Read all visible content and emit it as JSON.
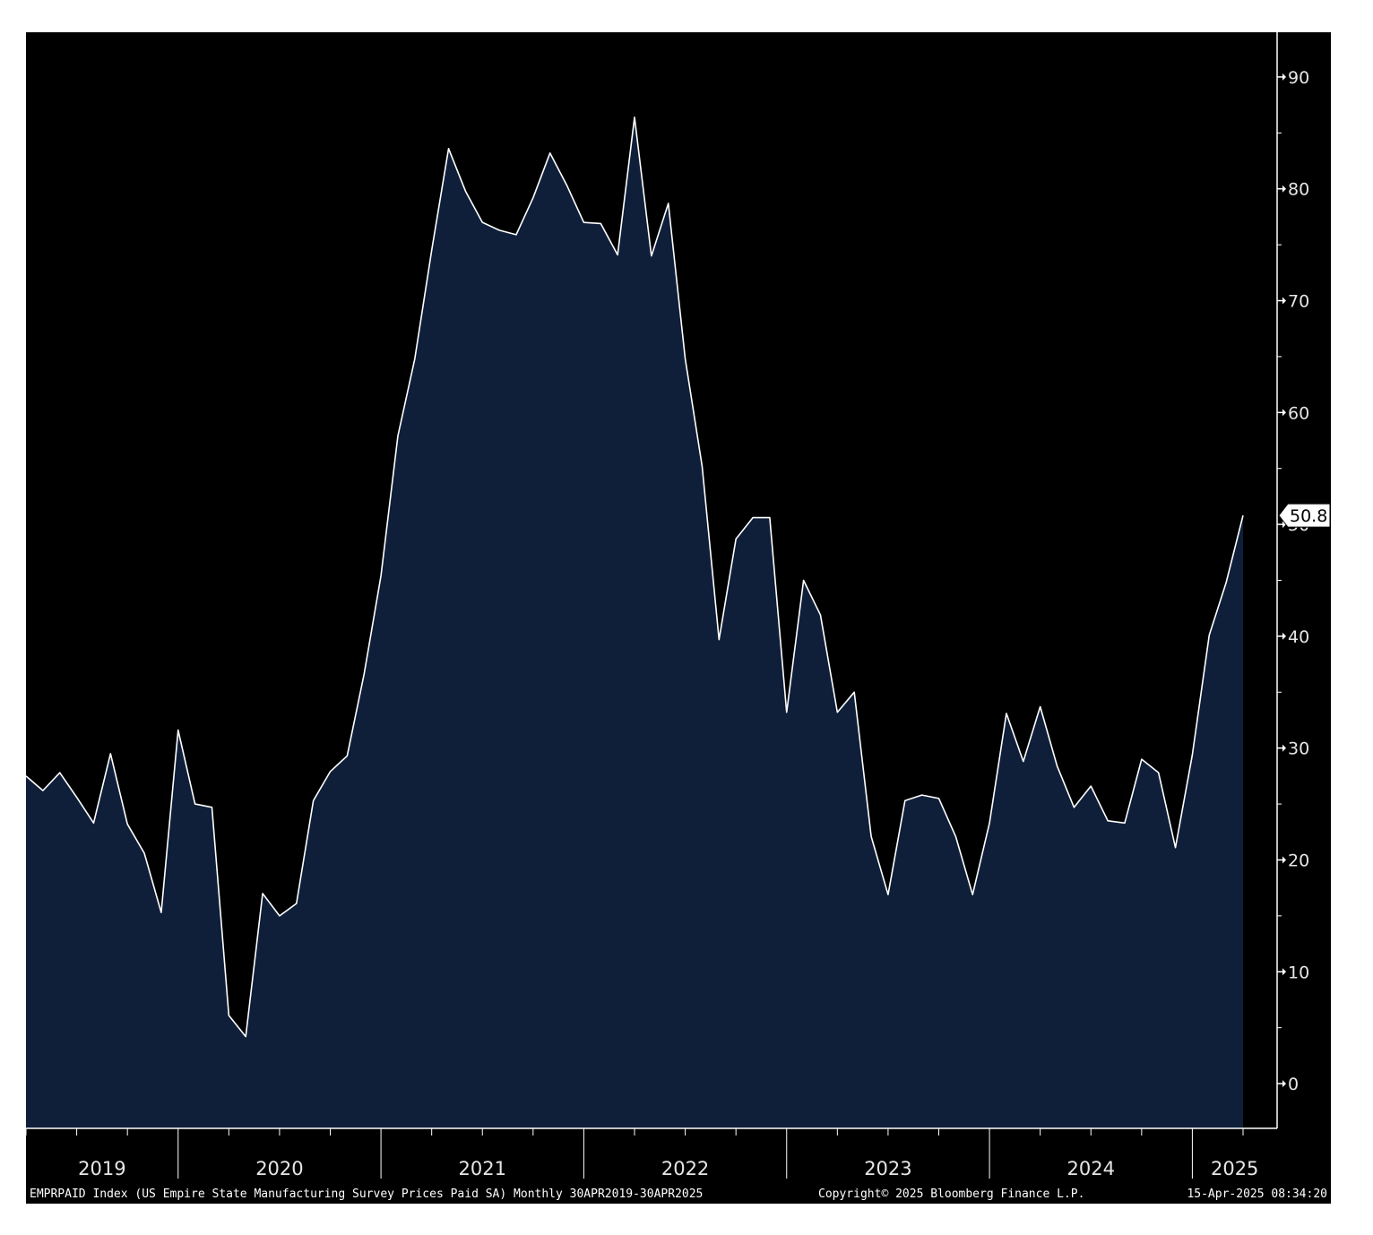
{
  "chart_data": {
    "type": "area",
    "series": [
      {
        "values": [
          27.5,
          26.2,
          27.8,
          25.6,
          23.3,
          29.5,
          23.2,
          20.6,
          15.3,
          31.6,
          25.0,
          24.7,
          6.1,
          4.2,
          17.0,
          15.0,
          16.1,
          25.3,
          27.9,
          29.3,
          36.6,
          45.4,
          57.9,
          64.8,
          74.5,
          83.6,
          79.8,
          77.0,
          76.3,
          75.9,
          79.2,
          83.2,
          80.3,
          77.0,
          76.9,
          74.1,
          86.4,
          74.0,
          78.7,
          64.8,
          55.2,
          39.7,
          48.7,
          50.6,
          50.6,
          33.2,
          45.0,
          41.9,
          33.2,
          35.0,
          22.1,
          16.9,
          25.3,
          25.8,
          25.5,
          22.1,
          16.9,
          23.3,
          33.1,
          28.8,
          33.7,
          28.4,
          24.7,
          26.6,
          23.5,
          23.3,
          29.0,
          27.8,
          21.1,
          29.4,
          40.1,
          44.8,
          50.8
        ]
      }
    ],
    "x_start": "2019-04",
    "x_end": "2025-04",
    "x_frequency": "monthly",
    "year_labels": [
      "2019",
      "2020",
      "2021",
      "2022",
      "2023",
      "2024",
      "2025"
    ],
    "yticks": [
      "0",
      "10",
      "20",
      "30",
      "40",
      "50",
      "60",
      "70",
      "80",
      "90"
    ],
    "ylim": [
      -4,
      94
    ],
    "last_value_label": "50.8",
    "footer": {
      "left": "EMPRPAID Index (US Empire State Manufacturing Survey Prices Paid SA)  Monthly 30APR2019-30APR2025",
      "center": "Copyright© 2025 Bloomberg Finance L.P.",
      "right": "15-Apr-2025 08:34:20"
    },
    "grid": false,
    "legend": "none",
    "colors": {
      "background": "#000000",
      "fill": "#0f1f3a",
      "line": "#ffffff",
      "axis": "#ffffff",
      "text": "#e6e6e6"
    }
  }
}
